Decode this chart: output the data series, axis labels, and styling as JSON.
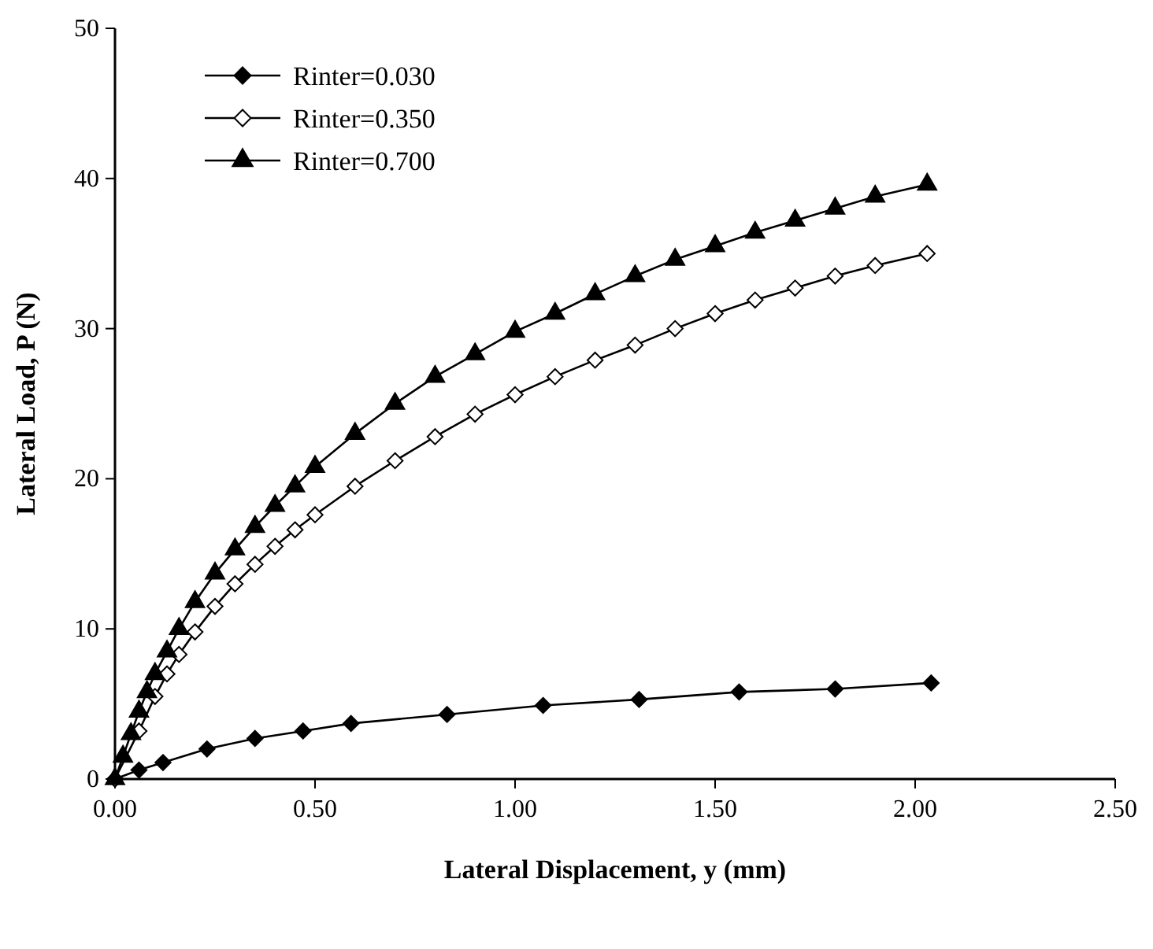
{
  "chart_data": {
    "type": "line",
    "xlabel": "Lateral Displacement, y (mm)",
    "ylabel": "Lateral Load, P (N)",
    "xlim": [
      0,
      2.5
    ],
    "ylim": [
      0,
      50
    ],
    "xticks": [
      {
        "value": 0,
        "label": "0.00"
      },
      {
        "value": 0.5,
        "label": "0.50"
      },
      {
        "value": 1,
        "label": "1.00"
      },
      {
        "value": 1.5,
        "label": "1.50"
      },
      {
        "value": 2,
        "label": "2.00"
      },
      {
        "value": 2.5,
        "label": "2.50"
      }
    ],
    "yticks": [
      0,
      10,
      20,
      30,
      40,
      50
    ],
    "grid": false,
    "legend": "top left",
    "line_style": "solid",
    "series": [
      {
        "name": "Rinter=0.030",
        "color": "#000000",
        "marker": "diamond",
        "x": [
          0,
          0.06,
          0.12,
          0.23,
          0.35,
          0.47,
          0.59,
          0.83,
          1.07,
          1.31,
          1.56,
          1.8,
          2.04
        ],
        "values": [
          0,
          0.6,
          1.1,
          2.0,
          2.7,
          3.2,
          3.7,
          4.3,
          4.9,
          5.3,
          5.8,
          6.0,
          6.4
        ]
      },
      {
        "name": "Rinter=0.350",
        "color": "#000000",
        "marker": "diamond",
        "x": [
          0,
          0.03,
          0.06,
          0.1,
          0.13,
          0.16,
          0.2,
          0.25,
          0.3,
          0.35,
          0.4,
          0.45,
          0.5,
          0.6,
          0.7,
          0.8,
          0.9,
          1.0,
          1.1,
          1.2,
          1.3,
          1.4,
          1.5,
          1.6,
          1.7,
          1.8,
          1.9,
          2.03
        ],
        "values": [
          0,
          null,
          3.2,
          5.5,
          7,
          8.3,
          9.8,
          11.5,
          13,
          14.3,
          15.5,
          16.6,
          17.6,
          19.5,
          21.2,
          22.8,
          24.3,
          25.6,
          26.8,
          27.9,
          28.9,
          30,
          31,
          31.9,
          32.7,
          33.5,
          34.2,
          35.0
        ]
      },
      {
        "name": "Rinter=0.700",
        "color": "#000000",
        "marker": "triangle",
        "x": [
          0,
          0.02,
          0.04,
          0.06,
          0.08,
          0.1,
          0.13,
          0.16,
          0.2,
          0.25,
          0.3,
          0.35,
          0.4,
          0.45,
          0.5,
          0.6,
          0.7,
          0.8,
          0.9,
          1.0,
          1.1,
          1.2,
          1.3,
          1.4,
          1.5,
          1.6,
          1.7,
          1.8,
          1.9,
          2.03
        ],
        "values": [
          0,
          1.5,
          3,
          4.5,
          5.8,
          7,
          8.5,
          10,
          11.8,
          13.7,
          15.3,
          16.8,
          18.2,
          19.5,
          20.8,
          23,
          25,
          26.8,
          28.3,
          29.8,
          31,
          32.3,
          33.5,
          34.6,
          35.5,
          36.4,
          37.2,
          38,
          38.8,
          39.6
        ]
      }
    ]
  }
}
